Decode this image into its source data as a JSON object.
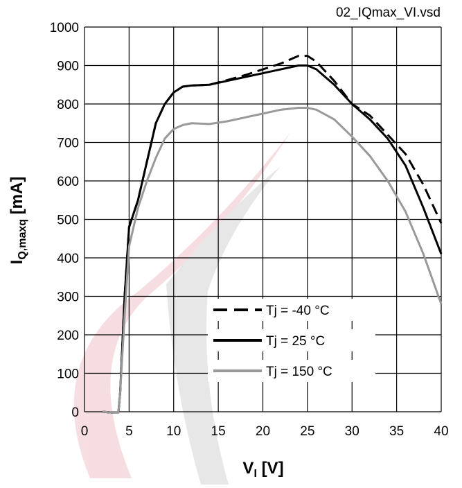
{
  "chart_data": {
    "type": "line",
    "file_label": "02_IQmax_VI.vsd",
    "x_label": {
      "main": "V",
      "sub": "I",
      "unit": "[V]"
    },
    "y_label": {
      "main": "I",
      "sub": "Q,maxq",
      "unit": "[mA]"
    },
    "xlim": [
      0,
      40
    ],
    "xticks": [
      0,
      5,
      10,
      15,
      20,
      25,
      30,
      35,
      40
    ],
    "ylim": [
      0,
      1000
    ],
    "yticks": [
      0,
      100,
      200,
      300,
      400,
      500,
      600,
      700,
      800,
      900,
      1000
    ],
    "grid": true,
    "legend": "lower-right",
    "series": [
      {
        "name": "Tj = -40 °C",
        "color": "#000000",
        "line_style": "dashed",
        "x": [
          2,
          3,
          3.8,
          4,
          4.5,
          5,
          6,
          7,
          8,
          9,
          10,
          11,
          12,
          14,
          16,
          18,
          20,
          22,
          24,
          25,
          26,
          28,
          30,
          32,
          34,
          36,
          38,
          40
        ],
        "values": [
          0,
          -2,
          -2,
          50,
          300,
          480,
          550,
          650,
          750,
          800,
          830,
          845,
          848,
          850,
          862,
          875,
          890,
          905,
          925,
          925,
          910,
          860,
          800,
          770,
          720,
          670,
          590,
          490
        ]
      },
      {
        "name": "Tj = 25 °C",
        "color": "#000000",
        "line_style": "solid",
        "x": [
          2,
          3,
          3.8,
          4,
          4.5,
          5,
          6,
          7,
          8,
          9,
          10,
          11,
          12,
          14,
          16,
          18,
          20,
          22,
          24,
          25,
          26,
          28,
          30,
          32,
          34,
          36,
          38,
          40
        ],
        "values": [
          0,
          -2,
          -2,
          50,
          300,
          480,
          550,
          650,
          750,
          800,
          830,
          845,
          848,
          850,
          860,
          870,
          880,
          890,
          900,
          900,
          890,
          850,
          800,
          760,
          710,
          640,
          530,
          410
        ]
      },
      {
        "name": "Tj = 150 °C",
        "color": "#999999",
        "line_style": "solid",
        "x": [
          2,
          3,
          3.8,
          4,
          4.5,
          5,
          6,
          7,
          8,
          9,
          10,
          11,
          12,
          14,
          16,
          18,
          20,
          22,
          24,
          25,
          26,
          28,
          30,
          32,
          34,
          36,
          38,
          40
        ],
        "values": [
          0,
          -2,
          -2,
          50,
          250,
          430,
          530,
          600,
          660,
          710,
          735,
          745,
          750,
          748,
          755,
          765,
          775,
          785,
          790,
          790,
          785,
          760,
          715,
          665,
          600,
          520,
          410,
          280
        ]
      }
    ]
  }
}
